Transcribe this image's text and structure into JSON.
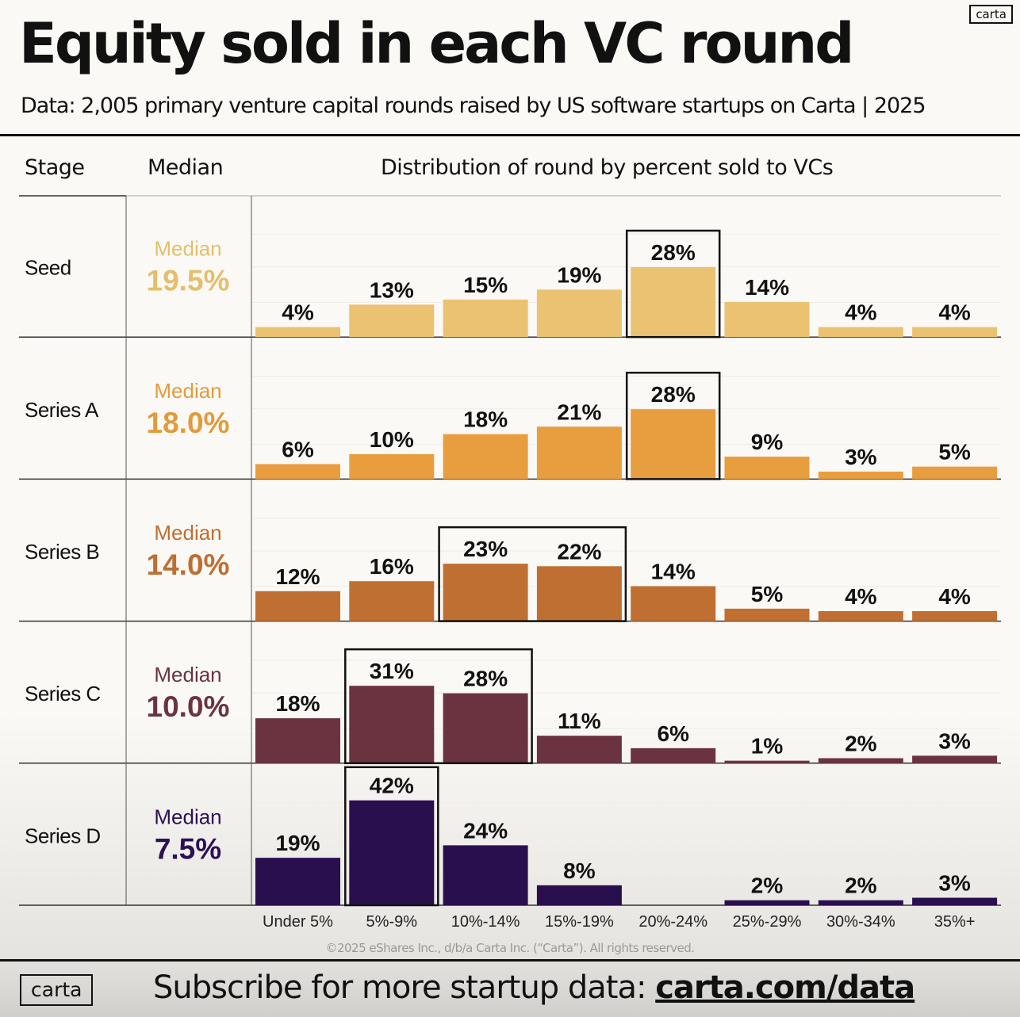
{
  "header": {
    "title": "Equity sold in each VC round",
    "subtitle": "Data: 2,005 primary venture capital rounds raised by US software startups on Carta | 2025",
    "logo": "carta"
  },
  "table_headers": {
    "stage": "Stage",
    "median": "Median",
    "distribution": "Distribution of round by percent sold to VCs"
  },
  "chart_data": {
    "type": "bar",
    "title": "Distribution of round by percent sold to VCs",
    "categories": [
      "Under 5%",
      "5%-9%",
      "10%-14%",
      "15%-19%",
      "20%-24%",
      "25%-29%",
      "30%-34%",
      "35%+"
    ],
    "series": [
      {
        "name": "Seed",
        "median_label": "Median",
        "median": "19.5%",
        "color": "#EBC271",
        "median_color": "#E6BE6C",
        "values": [
          4,
          13,
          15,
          19,
          28,
          14,
          4,
          4
        ],
        "highlight": [
          "20%-24%"
        ]
      },
      {
        "name": "Series A",
        "median_label": "Median",
        "median": "18.0%",
        "color": "#E89E3F",
        "median_color": "#E39A3C",
        "values": [
          6,
          10,
          18,
          21,
          28,
          9,
          3,
          5
        ],
        "highlight": [
          "20%-24%"
        ]
      },
      {
        "name": "Series B",
        "median_label": "Median",
        "median": "14.0%",
        "color": "#C06F32",
        "median_color": "#BF6E31",
        "values": [
          12,
          16,
          23,
          22,
          14,
          5,
          4,
          4
        ],
        "highlight": [
          "10%-14%",
          "15%-19%"
        ]
      },
      {
        "name": "Series C",
        "median_label": "Median",
        "median": "10.0%",
        "color": "#6B3340",
        "median_color": "#6A3440",
        "values": [
          18,
          31,
          28,
          11,
          6,
          1,
          2,
          3
        ],
        "highlight": [
          "5%-9%",
          "10%-14%"
        ]
      },
      {
        "name": "Series D",
        "median_label": "Median",
        "median": "7.5%",
        "color": "#2A0F4F",
        "median_color": "#2B1055",
        "values": [
          19,
          42,
          24,
          8,
          null,
          2,
          2,
          3
        ],
        "highlight": [
          "5%-9%"
        ]
      }
    ],
    "value_suffix": "%",
    "ylim": [
      0,
      45
    ],
    "grid": true
  },
  "footer": {
    "copyright": "©2025 eShares Inc., d/b/a Carta Inc. (“Carta”). All rights reserved.",
    "logo": "carta",
    "cta_text": "Subscribe for more startup data: ",
    "cta_link": "carta.com/data"
  }
}
